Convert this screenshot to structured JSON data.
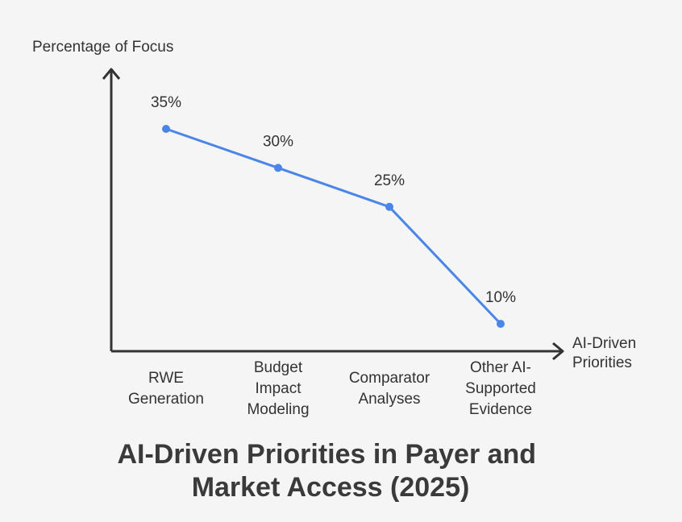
{
  "chart_data": {
    "type": "line",
    "title_lines": [
      "AI-Driven Priorities in Payer and",
      "Market Access (2025)"
    ],
    "ylabel": "Percentage of Focus",
    "xlabel_lines": [
      "AI-Driven",
      "Priorities"
    ],
    "categories": [
      [
        "RWE",
        "Generation"
      ],
      [
        "Budget",
        "Impact",
        "Modeling"
      ],
      [
        "Comparator",
        "Analyses"
      ],
      [
        "Other AI-",
        "Supported",
        "Evidence"
      ]
    ],
    "values": [
      35,
      30,
      25,
      10
    ],
    "data_labels": [
      "35%",
      "30%",
      "25%",
      "10%"
    ],
    "ylim": [
      0,
      40
    ],
    "grid": false,
    "line_color": "#4a86e8",
    "axis_color": "#333333"
  }
}
